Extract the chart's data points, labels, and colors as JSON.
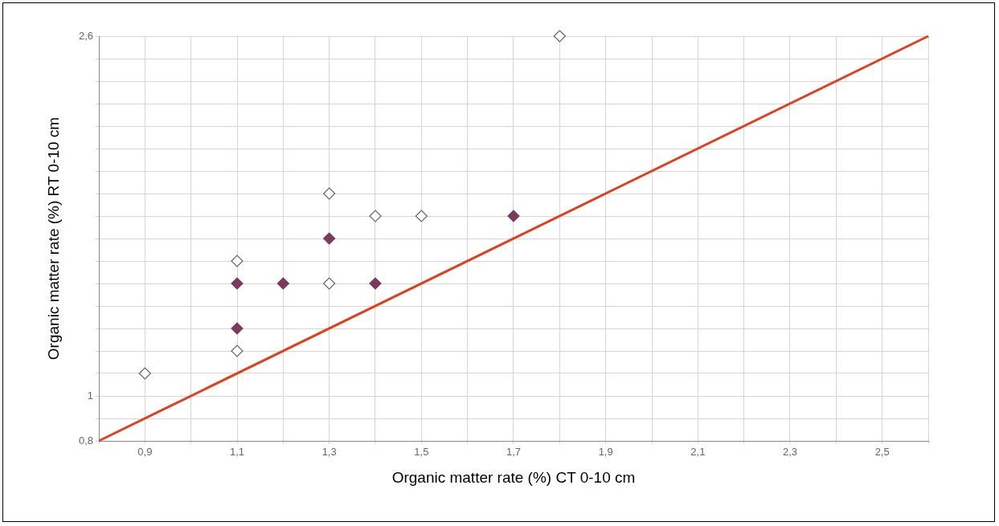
{
  "chart_data": {
    "type": "scatter",
    "xlabel": "Organic matter rate (%) CT 0-10 cm",
    "ylabel": "Organic matter rate (%) RT 0-10 cm",
    "xlim": [
      0.8,
      2.6
    ],
    "ylim": [
      0.8,
      2.6
    ],
    "xticks": [
      {
        "value": 0.8,
        "label": null
      },
      {
        "value": 0.9,
        "label": "0,9"
      },
      {
        "value": 1.0,
        "label": null
      },
      {
        "value": 1.1,
        "label": "1,1"
      },
      {
        "value": 1.2,
        "label": null
      },
      {
        "value": 1.3,
        "label": "1,3"
      },
      {
        "value": 1.4,
        "label": null
      },
      {
        "value": 1.5,
        "label": "1,5"
      },
      {
        "value": 1.6,
        "label": null
      },
      {
        "value": 1.7,
        "label": "1,7"
      },
      {
        "value": 1.8,
        "label": null
      },
      {
        "value": 1.9,
        "label": "1,9"
      },
      {
        "value": 2.0,
        "label": null
      },
      {
        "value": 2.1,
        "label": "2,1"
      },
      {
        "value": 2.2,
        "label": null
      },
      {
        "value": 2.3,
        "label": "2,3"
      },
      {
        "value": 2.4,
        "label": null
      },
      {
        "value": 2.5,
        "label": "2,5"
      },
      {
        "value": 2.6,
        "label": null
      }
    ],
    "yticks": [
      {
        "value": 0.8,
        "label": "0,8"
      },
      {
        "value": 0.9,
        "label": null
      },
      {
        "value": 1.0,
        "label": "1"
      },
      {
        "value": 1.1,
        "label": null
      },
      {
        "value": 1.2,
        "label": null
      },
      {
        "value": 1.3,
        "label": null
      },
      {
        "value": 1.4,
        "label": null
      },
      {
        "value": 1.5,
        "label": null
      },
      {
        "value": 1.6,
        "label": null
      },
      {
        "value": 1.7,
        "label": null
      },
      {
        "value": 1.8,
        "label": null
      },
      {
        "value": 1.9,
        "label": null
      },
      {
        "value": 2.0,
        "label": null
      },
      {
        "value": 2.1,
        "label": null
      },
      {
        "value": 2.2,
        "label": null
      },
      {
        "value": 2.3,
        "label": null
      },
      {
        "value": 2.4,
        "label": null
      },
      {
        "value": 2.5,
        "label": null
      },
      {
        "value": 2.6,
        "label": "2,6"
      }
    ],
    "grid": true,
    "marker": "diamond",
    "series": [
      {
        "color": "#ffffff",
        "x": [
          0.9,
          1.1,
          1.1,
          1.3,
          1.4,
          1.5,
          1.3,
          1.8
        ],
        "values": [
          1.1,
          1.2,
          1.6,
          1.9,
          1.8,
          1.8,
          1.5,
          2.6
        ]
      },
      {
        "color": "#7b3a5e",
        "x": [
          1.1,
          1.2,
          1.4,
          1.1,
          1.3,
          1.7
        ],
        "values": [
          1.5,
          1.5,
          1.5,
          1.3,
          1.7,
          1.8
        ]
      },
      {
        "type": "line",
        "marker": "none",
        "color": "#e0401e",
        "x": [
          0.8,
          2.6
        ],
        "values": [
          0.8,
          2.6
        ]
      }
    ]
  }
}
